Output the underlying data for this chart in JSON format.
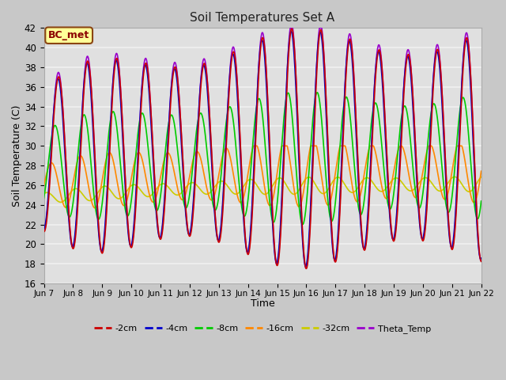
{
  "title": "Soil Temperatures Set A",
  "xlabel": "Time",
  "ylabel": "Soil Temperature (C)",
  "ylim": [
    16,
    42
  ],
  "xlim": [
    0,
    15
  ],
  "fig_bg": "#c8c8c8",
  "plot_bg": "#e0e0e0",
  "grid_color": "#f0f0f0",
  "annotation_text": "BC_met",
  "annotation_bg": "#ffff99",
  "annotation_border": "#8B4513",
  "annotation_text_color": "#8B0000",
  "x_tick_labels": [
    "Jun 7",
    "Jun 8",
    "Jun 9",
    "Jun 10",
    "Jun 11",
    "Jun 12",
    "Jun 13",
    "Jun 14",
    "Jun 15",
    "Jun 16",
    "Jun 17",
    "Jun 18",
    "Jun 19",
    "Jun 20",
    "Jun 21",
    "Jun 22"
  ],
  "series": {
    "2cm": {
      "color": "#cc0000",
      "label": "-2cm"
    },
    "4cm": {
      "color": "#0000cc",
      "label": "-4cm"
    },
    "8cm": {
      "color": "#00cc00",
      "label": "-8cm"
    },
    "16cm": {
      "color": "#ff8800",
      "label": "-16cm"
    },
    "32cm": {
      "color": "#cccc00",
      "label": "-32cm"
    },
    "theta": {
      "color": "#9900cc",
      "label": "Theta_Temp"
    }
  },
  "lw": 1.2
}
